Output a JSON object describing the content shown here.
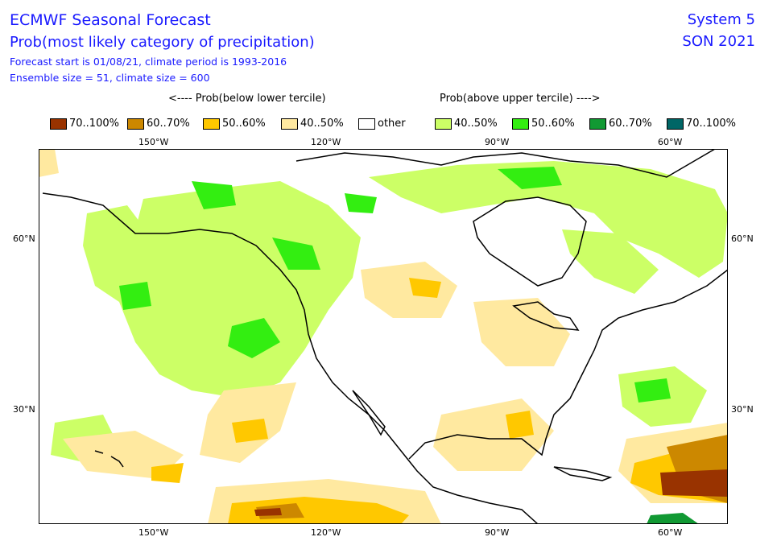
{
  "header": {
    "title": "ECMWF Seasonal Forecast",
    "subtitle": "Prob(most likely category of precipitation)",
    "info_line1": "Forecast start is 01/08/21, climate period is 1993-2016",
    "info_line2": "Ensemble size = 51, climate size = 600",
    "system": "System 5",
    "season": "SON 2021"
  },
  "legend": {
    "below_heading": "<---- Prob(below lower tercile)",
    "above_heading": "Prob(above upper tercile) ---->",
    "items": [
      {
        "label": "70..100%",
        "color": "#993300"
      },
      {
        "label": "60..70%",
        "color": "#cc8800"
      },
      {
        "label": "50..60%",
        "color": "#ffc800"
      },
      {
        "label": "40..50%",
        "color": "#ffe9a0"
      },
      {
        "label": "other",
        "color": "#ffffff"
      },
      {
        "label": "40..50%",
        "color": "#ccff66"
      },
      {
        "label": "50..60%",
        "color": "#33ee11"
      },
      {
        "label": "60..70%",
        "color": "#119933"
      },
      {
        "label": "70..100%",
        "color": "#006666"
      }
    ]
  },
  "axes": {
    "lon_labels": [
      "150°W",
      "120°W",
      "90°W",
      "60°W"
    ],
    "lat_labels": [
      "60°N",
      "30°N"
    ]
  }
}
